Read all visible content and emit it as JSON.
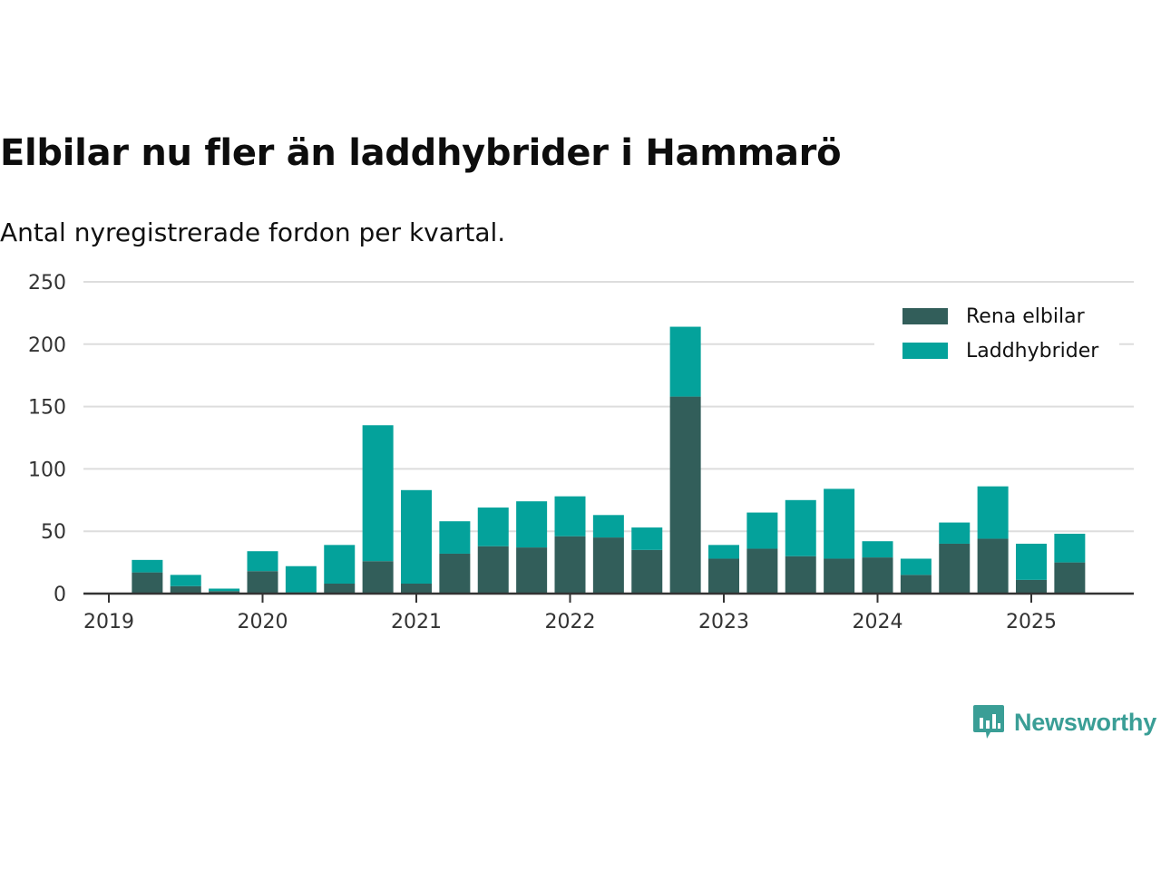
{
  "title": "Elbilar nu fler än laddhybrider i Hammarö",
  "subtitle": "Antal nyregistrerade fordon per kvartal.",
  "brand": "Newsworthy",
  "colors": {
    "rena_elbilar": "#325e5a",
    "laddhybrider": "#04a29b",
    "grid": "#dddddd",
    "axis": "#333333"
  },
  "chart_data": {
    "type": "bar",
    "stacked": true,
    "ylim": [
      0,
      250
    ],
    "yticks": [
      0,
      50,
      100,
      150,
      200,
      250
    ],
    "xticks": [
      "2019",
      "2020",
      "2021",
      "2022",
      "2023",
      "2024",
      "2025"
    ],
    "grid": true,
    "legend_position": "top-right",
    "categories": [
      "2019 Q2",
      "2019 Q3",
      "2019 Q4",
      "2020 Q1",
      "2020 Q2",
      "2020 Q3",
      "2020 Q4",
      "2021 Q1",
      "2021 Q2",
      "2021 Q3",
      "2021 Q4",
      "2022 Q1",
      "2022 Q2",
      "2022 Q3",
      "2022 Q4",
      "2023 Q1",
      "2023 Q2",
      "2023 Q3",
      "2023 Q4",
      "2024 Q1",
      "2024 Q2",
      "2024 Q3",
      "2024 Q4",
      "2025 Q1",
      "2025 Q2"
    ],
    "series": [
      {
        "name": "Rena elbilar",
        "values": [
          17,
          6,
          2,
          18,
          1,
          8,
          26,
          8,
          32,
          38,
          37,
          46,
          45,
          35,
          158,
          28,
          36,
          30,
          28,
          29,
          15,
          40,
          44,
          11,
          25
        ]
      },
      {
        "name": "Laddhybrider",
        "values": [
          10,
          9,
          2,
          16,
          21,
          31,
          109,
          75,
          26,
          31,
          37,
          32,
          18,
          18,
          56,
          11,
          29,
          45,
          56,
          13,
          13,
          17,
          42,
          29,
          23
        ]
      }
    ]
  }
}
